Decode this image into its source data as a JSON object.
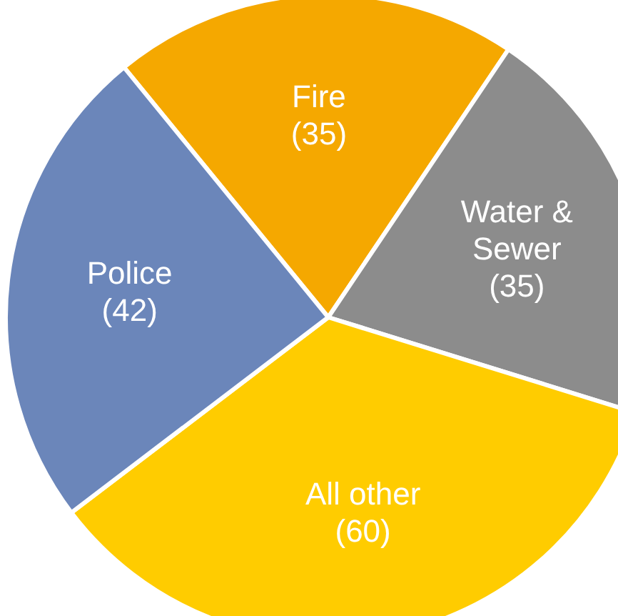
{
  "chart_data": {
    "type": "pie",
    "categories": [
      "Fire",
      "Water & Sewer",
      "All other",
      "Police"
    ],
    "values": [
      35,
      35,
      60,
      42
    ],
    "colors": [
      "#f5a800",
      "#8c8c8c",
      "#ffcc00",
      "#6b86ba"
    ],
    "value_labels": [
      "(35)",
      "(35)",
      "(60)",
      "(42)"
    ]
  }
}
